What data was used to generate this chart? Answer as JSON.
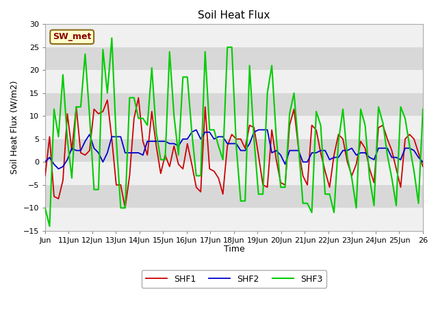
{
  "title": "Soil Heat Flux",
  "ylabel": "Soil Heat Flux (W/m2)",
  "xlabel": "Time",
  "ylim": [
    -15,
    30
  ],
  "yticks": [
    -15,
    -10,
    -5,
    0,
    5,
    10,
    15,
    20,
    25,
    30
  ],
  "xtick_labels": [
    "Jun",
    "11Jun",
    "12Jun",
    "13Jun",
    "14Jun",
    "15Jun",
    "16Jun",
    "17Jun",
    "18Jun",
    "19Jun",
    "20Jun",
    "21Jun",
    "22Jun",
    "23Jun",
    "24Jun",
    "25Jun",
    "26"
  ],
  "label_annotation": "SW_met",
  "shf1_color": "#cc0000",
  "shf2_color": "#0000cc",
  "shf3_color": "#00cc00",
  "plot_bg": "#e8e8e8",
  "band_light": "#f0f0f0",
  "band_dark": "#d8d8d8",
  "shf1": [
    -3.0,
    5.5,
    -7.5,
    -8.0,
    -4.0,
    10.5,
    2.5,
    12.0,
    2.0,
    1.5,
    2.5,
    11.5,
    10.5,
    11.0,
    13.5,
    5.0,
    -5.0,
    -5.0,
    -10.0,
    -3.0,
    9.5,
    14.0,
    4.5,
    1.5,
    11.0,
    3.5,
    -2.5,
    1.5,
    -1.0,
    3.5,
    -0.5,
    -1.5,
    4.0,
    -0.5,
    -5.5,
    -6.5,
    12.0,
    -1.5,
    -2.0,
    -3.5,
    -7.0,
    3.5,
    6.0,
    5.0,
    5.0,
    3.0,
    8.0,
    7.5,
    1.5,
    -5.0,
    -5.5,
    7.0,
    0.5,
    -4.5,
    -5.0,
    8.0,
    11.5,
    3.0,
    -3.0,
    -5.0,
    8.0,
    7.0,
    2.0,
    -2.0,
    -5.5,
    1.5,
    6.0,
    5.0,
    0.0,
    -3.0,
    -0.5,
    4.5,
    3.0,
    -1.5,
    -4.5,
    7.5,
    8.0,
    5.0,
    2.5,
    -1.5,
    -5.5,
    5.0,
    6.0,
    5.0,
    2.0,
    -1.0
  ],
  "shf2": [
    0.0,
    1.0,
    -0.5,
    -1.5,
    -1.0,
    0.5,
    3.0,
    2.5,
    2.5,
    4.5,
    6.0,
    3.0,
    2.0,
    0.0,
    2.0,
    5.5,
    5.5,
    5.5,
    2.0,
    2.0,
    2.0,
    2.0,
    1.5,
    4.5,
    4.5,
    4.5,
    4.5,
    4.5,
    4.0,
    4.0,
    3.5,
    5.0,
    5.0,
    6.5,
    7.0,
    5.0,
    6.5,
    6.5,
    5.0,
    5.5,
    5.5,
    4.0,
    4.0,
    4.0,
    2.5,
    2.5,
    4.0,
    6.5,
    7.0,
    7.0,
    7.0,
    2.0,
    2.5,
    1.5,
    -0.5,
    2.5,
    2.5,
    2.5,
    0.0,
    0.0,
    2.0,
    2.0,
    2.5,
    2.5,
    0.5,
    1.0,
    1.0,
    2.5,
    2.5,
    3.0,
    1.5,
    2.0,
    2.0,
    1.0,
    0.5,
    3.0,
    3.0,
    3.0,
    1.0,
    1.0,
    0.5,
    3.0,
    3.0,
    2.5,
    1.0,
    0.0
  ],
  "shf3": [
    -10.0,
    -14.0,
    11.5,
    5.5,
    19.0,
    5.0,
    -3.5,
    12.0,
    12.0,
    23.5,
    10.0,
    -6.0,
    -6.0,
    24.5,
    15.0,
    27.0,
    5.0,
    -10.0,
    -10.0,
    14.0,
    14.0,
    9.5,
    9.5,
    8.0,
    20.5,
    6.5,
    0.5,
    0.5,
    24.0,
    10.0,
    1.5,
    18.5,
    18.5,
    6.5,
    -3.0,
    -3.0,
    24.0,
    7.0,
    7.0,
    3.5,
    0.5,
    25.0,
    25.0,
    3.5,
    -8.5,
    -8.5,
    21.0,
    5.0,
    -7.0,
    -7.0,
    15.0,
    21.0,
    5.5,
    -5.5,
    -5.5,
    10.5,
    15.0,
    3.5,
    -9.0,
    -9.0,
    -11.0,
    11.0,
    8.0,
    -7.0,
    -7.0,
    -11.0,
    4.5,
    11.5,
    1.0,
    -3.5,
    -10.0,
    11.5,
    8.0,
    -3.5,
    -9.5,
    12.0,
    8.5,
    1.5,
    -3.5,
    -9.5,
    12.0,
    9.5,
    3.5,
    -2.0,
    -9.0,
    11.5
  ]
}
